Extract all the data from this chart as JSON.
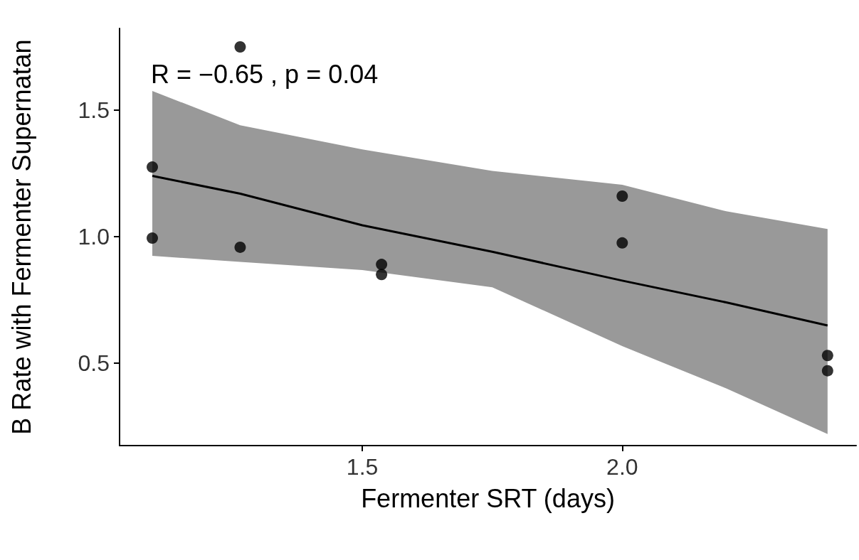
{
  "chart_data": {
    "type": "scatter",
    "xlabel": "Fermenter SRT (days)",
    "ylabel": "B Rate with Fermenter Supernatan",
    "annotations": [
      "R = −0.65 , p = 0.04"
    ],
    "xlim": [
      1.033,
      2.45
    ],
    "ylim": [
      0.174,
      1.823
    ],
    "xticks": [
      1.5,
      {
        "value": 2,
        "label": "2.0"
      }
    ],
    "yticks": [
      0.5,
      {
        "value": 1,
        "label": "1.0"
      },
      1.5
    ],
    "grid": false,
    "marker": "circle",
    "series": [
      {
        "color": "#000000",
        "x": [
          1.096,
          1.096,
          1.265,
          1.265,
          1.537,
          1.537,
          2.0,
          2.0,
          2.395,
          2.395
        ],
        "values": [
          1.275,
          0.994,
          1.75,
          0.958,
          0.89,
          0.85,
          1.16,
          0.975,
          0.53,
          0.47
        ]
      },
      {
        "type": "line",
        "color": "#000000",
        "marker": "none",
        "x": [
          1.096,
          1.265,
          1.5,
          1.75,
          2.0,
          2.2,
          2.395
        ],
        "values": [
          1.24,
          1.17,
          1.045,
          0.94,
          0.826,
          0.74,
          0.649
        ],
        "lower": [
          0.924,
          0.9,
          0.868,
          0.8,
          0.567,
          0.4,
          0.22
        ],
        "upper": [
          1.576,
          1.44,
          1.345,
          1.26,
          1.205,
          1.1,
          1.03
        ]
      }
    ]
  }
}
